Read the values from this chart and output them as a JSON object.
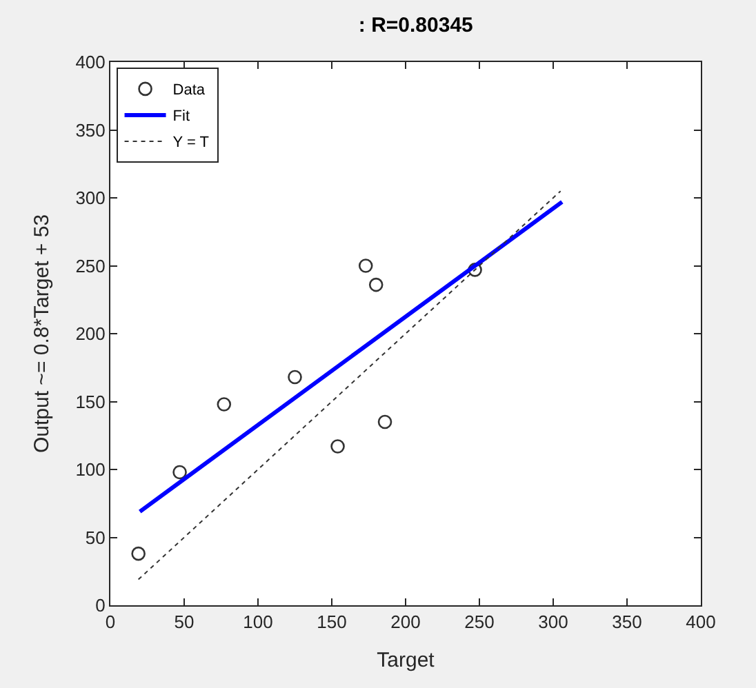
{
  "chart_data": {
    "type": "scatter",
    "title": ": R=0.80345",
    "xlabel": "Target",
    "ylabel": "Output ~= 0.8*Target + 53",
    "series": [
      {
        "name": "Data",
        "marker": "circle",
        "color": "#333333",
        "x": [
          19,
          47,
          77,
          125,
          154,
          173,
          180,
          186,
          247
        ],
        "values": [
          38,
          98,
          148,
          168,
          117,
          250,
          236,
          135,
          247
        ]
      },
      {
        "name": "Fit",
        "type": "line",
        "color": "#0000ff",
        "line_style": "solid",
        "x": [
          20,
          306
        ],
        "values": [
          69,
          297
        ]
      },
      {
        "name": "Y = T",
        "type": "line",
        "color": "#333333",
        "line_style": "dotted",
        "x": [
          19,
          305
        ],
        "values": [
          19,
          305
        ]
      }
    ],
    "xlim": [
      0,
      400
    ],
    "xticks": [
      0,
      50,
      100,
      150,
      200,
      250,
      300,
      350,
      400
    ],
    "ylim": [
      0,
      400
    ],
    "yticks": [
      0,
      50,
      100,
      150,
      200,
      250,
      300,
      350,
      400
    ],
    "legend": "top left"
  }
}
